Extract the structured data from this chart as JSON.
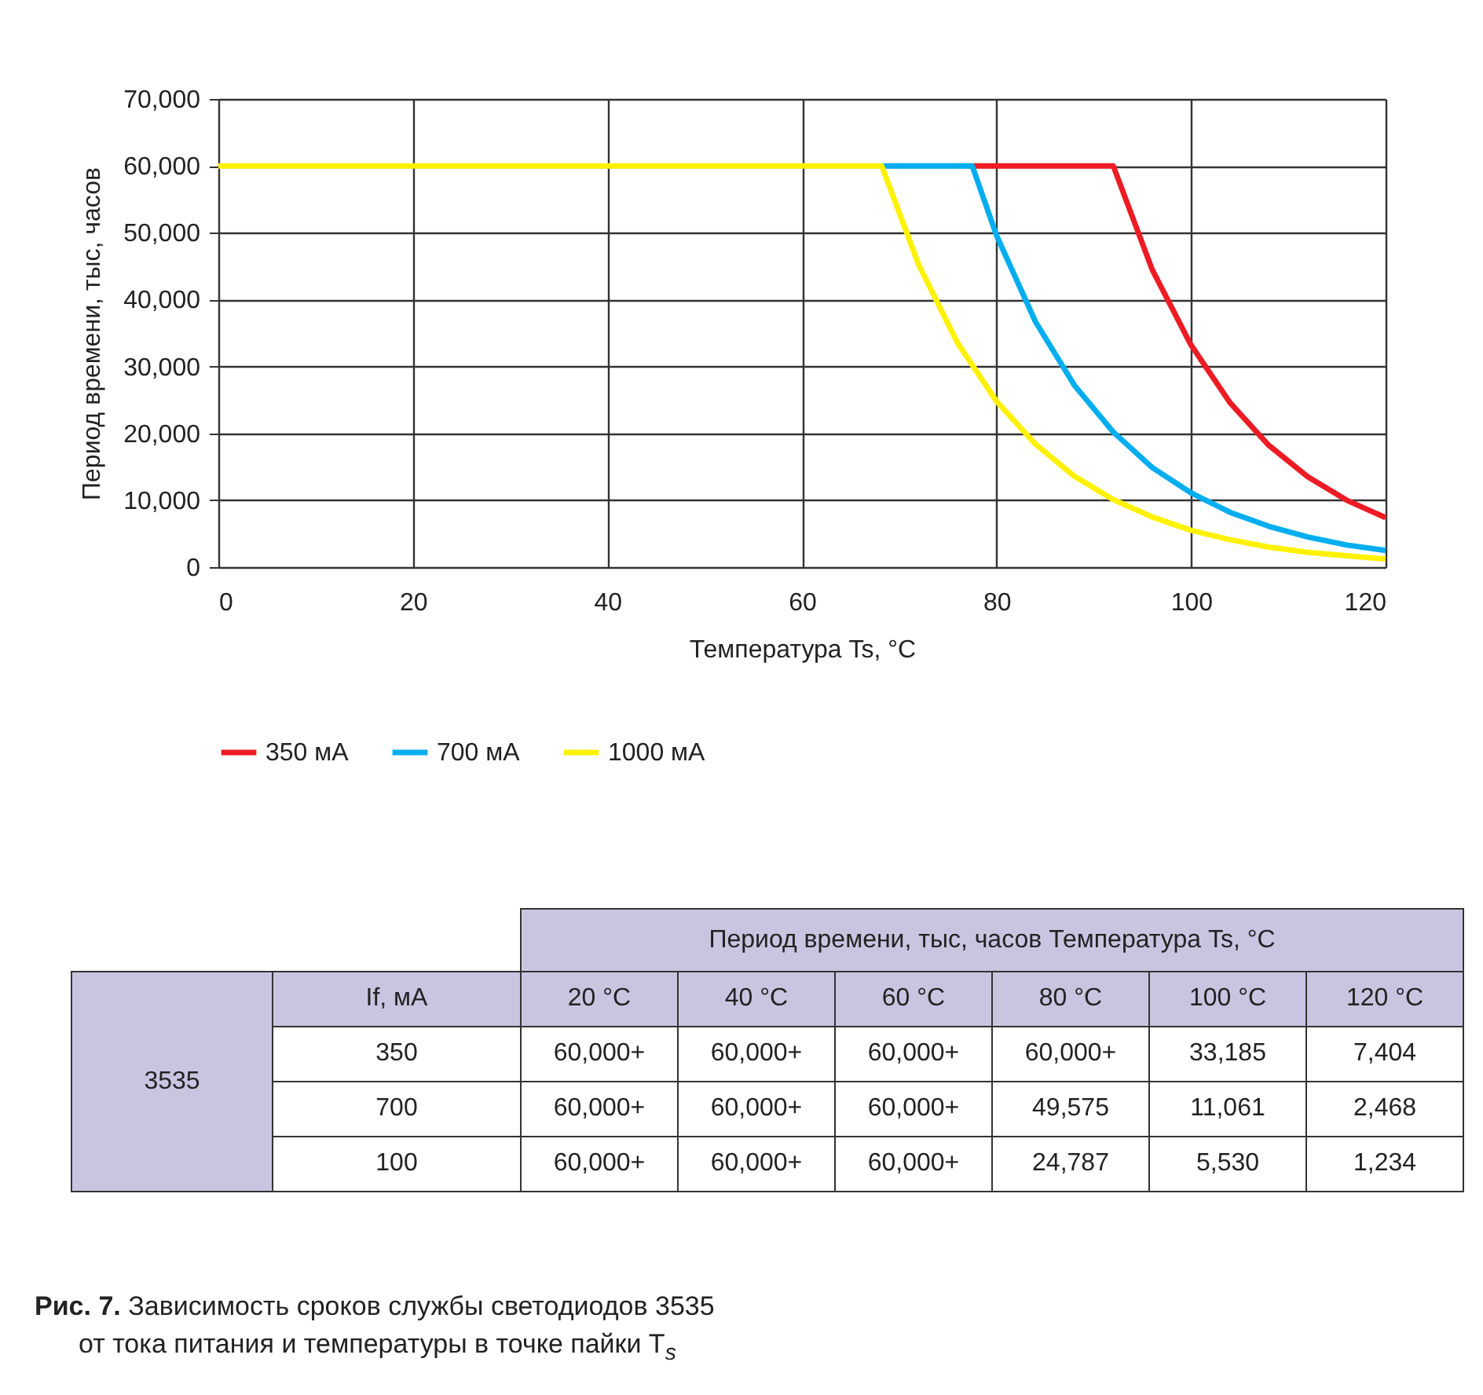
{
  "chart_data": {
    "type": "line",
    "title": "Рис. 7. Зависимость сроков службы светодиодов 3535",
    "subtitle": "от тока питания и температуры в точке пайки T$_{s}$",
    "xlabel": "Температура Ts, °C",
    "ylabel": "Период времени, тыс, часов",
    "xlim": [
      0,
      120
    ],
    "xticks": [
      0,
      20,
      40,
      60,
      80,
      100,
      120
    ],
    "ylim": [
      0,
      70000
    ],
    "yticks": [
      {
        "value": 0,
        "label": "0"
      },
      {
        "value": 10000,
        "label": "10,000"
      },
      {
        "value": 20000,
        "label": "20,000"
      },
      {
        "value": 30000,
        "label": "30,000"
      },
      {
        "value": 40000,
        "label": "40,000"
      },
      {
        "value": 50000,
        "label": "50,000"
      },
      {
        "value": 60000,
        "label": "60,000"
      },
      {
        "value": 70000,
        "label": "70,000"
      }
    ],
    "grid": true,
    "legend": "bottom",
    "line_style": "solid",
    "annotations": [
      "Период времени, тыс, часов",
      "Температура Ts, °C",
      "If, мА",
      "20 °C",
      "40 °C",
      "60 °C",
      "80 °C",
      "100 °C",
      "120 °C",
      "3535",
      "350",
      "700",
      "100",
      "60,000+",
      "60,000+",
      "60,000+",
      "60,000+",
      "33,185",
      "7,404",
      "60,000+",
      "60,000+",
      "60,000+",
      "49,575",
      "11,061",
      "2,468",
      "60,000+",
      "60,000+",
      "60,000+",
      "24,787",
      "5,530",
      "1,234"
    ],
    "series": [
      {
        "name": "350 мА",
        "color": "#ed1c24",
        "x": [
          77.5,
          92,
          96,
          100,
          104,
          108,
          112,
          116,
          120
        ],
        "values": [
          60000,
          60000,
          44500,
          33200,
          24600,
          18200,
          13500,
          10000,
          7400
        ]
      },
      {
        "name": "700 мА",
        "color": "#00aeef",
        "x": [
          68.2,
          77.5,
          80,
          84,
          88,
          92,
          96,
          100,
          104,
          108,
          112,
          116,
          120
        ],
        "values": [
          60000,
          60000,
          49600,
          36700,
          27200,
          20200,
          14900,
          11100,
          8200,
          6100,
          4500,
          3300,
          2500
        ]
      },
      {
        "name": "1000 мА",
        "color": "#fff200",
        "x": [
          0,
          68.2,
          72,
          76,
          80,
          84,
          88,
          92,
          96,
          100,
          104,
          108,
          112,
          116,
          120
        ],
        "values": [
          60000,
          60000,
          45200,
          33500,
          24800,
          18400,
          13600,
          10100,
          7500,
          5500,
          4100,
          3000,
          2200,
          1700,
          1200
        ]
      }
    ]
  }
}
